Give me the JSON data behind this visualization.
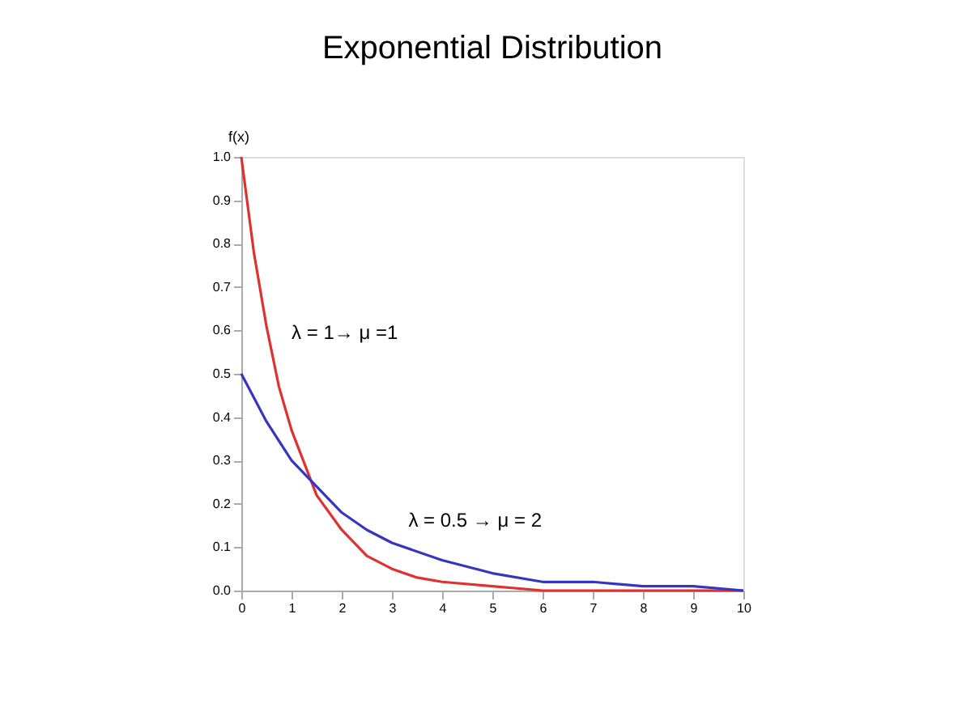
{
  "chart_data": {
    "type": "line",
    "title": "Exponential Distribution",
    "ylabel": "f(x)",
    "series": [
      {
        "color": "#e03030",
        "x": [
          0,
          0.25,
          0.5,
          0.75,
          1,
          1.5,
          2,
          2.5,
          3,
          3.5,
          4,
          5,
          6,
          7,
          8,
          9,
          10
        ],
        "values": [
          1.0,
          0.78,
          0.61,
          0.47,
          0.37,
          0.22,
          0.14,
          0.08,
          0.05,
          0.03,
          0.02,
          0.01,
          0.0,
          0.0,
          0.0,
          0.0,
          0.0
        ]
      },
      {
        "color": "#3535c0",
        "x": [
          0,
          0.5,
          1,
          1.5,
          2,
          2.5,
          3,
          4,
          5,
          6,
          7,
          8,
          9,
          10
        ],
        "values": [
          0.5,
          0.39,
          0.3,
          0.24,
          0.18,
          0.14,
          0.11,
          0.07,
          0.04,
          0.02,
          0.02,
          0.01,
          0.01,
          0.0
        ]
      }
    ],
    "xlim": [
      0,
      10
    ],
    "xticks": [
      0,
      1,
      2,
      3,
      4,
      5,
      6,
      7,
      8,
      9,
      10
    ],
    "ylim": [
      0,
      1.0
    ],
    "yticks": [
      {
        "value": 0,
        "label": "0.0"
      },
      {
        "value": 0.1,
        "label": "0.1"
      },
      {
        "value": 0.2,
        "label": "0.2"
      },
      {
        "value": 0.3,
        "label": "0.3"
      },
      {
        "value": 0.4,
        "label": "0.4"
      },
      {
        "value": 0.5,
        "label": "0.5"
      },
      {
        "value": 0.6,
        "label": "0.6"
      },
      {
        "value": 0.7,
        "label": "0.7"
      },
      {
        "value": 0.8,
        "label": "0.8"
      },
      {
        "value": 0.9,
        "label": "0.9"
      },
      {
        "value": 1.0,
        "label": "1.0"
      }
    ],
    "annotations": [
      {
        "text": "λ = 1→ μ =1",
        "x": 0.55,
        "y": 0.58
      },
      {
        "text": "λ = 0.5 → μ = 2",
        "x": 3.2,
        "y": 0.11
      }
    ],
    "grid": false,
    "legend": false,
    "marker": "none",
    "line_style": "solid"
  }
}
